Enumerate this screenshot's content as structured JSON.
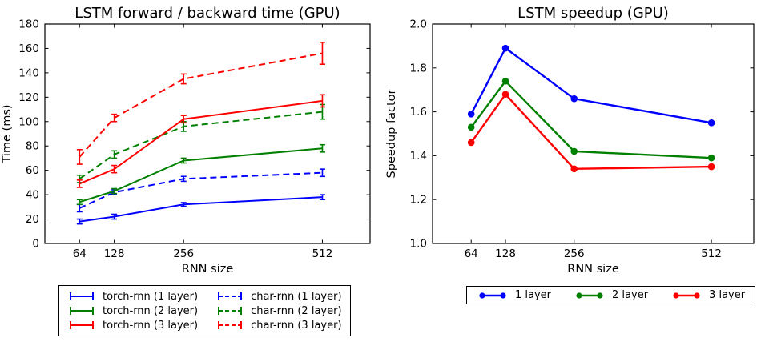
{
  "chart_data": [
    {
      "type": "line",
      "title": "LSTM forward / backward time (GPU)",
      "xlabel": "RNN size",
      "ylabel": "Time (ms)",
      "x": [
        64,
        128,
        256,
        512
      ],
      "xticks": [
        64,
        128,
        256,
        512
      ],
      "xtick_labels": [
        "64",
        "128",
        "256",
        "512"
      ],
      "xlim": [
        0,
        600
      ],
      "ylim": [
        0,
        180
      ],
      "yticks": [
        0,
        20,
        40,
        60,
        80,
        100,
        120,
        140,
        160,
        180
      ],
      "ytick_labels": [
        "0",
        "20",
        "40",
        "60",
        "80",
        "100",
        "120",
        "140",
        "160",
        "180"
      ],
      "grid": false,
      "marker": "none",
      "line_width": 2,
      "legend_position": "below-two-columns",
      "series": [
        {
          "label": "torch-rnn (1 layer)",
          "color": "#0000ff",
          "dash": "solid",
          "values": [
            18,
            22,
            32,
            38
          ],
          "yerr": [
            2,
            2,
            1.5,
            2
          ]
        },
        {
          "label": "char-rnn (1 layer)",
          "color": "#0000ff",
          "dash": "dashed",
          "values": [
            29,
            42,
            53,
            58
          ],
          "yerr": [
            3,
            2,
            2,
            3
          ]
        },
        {
          "label": "torch-rnn (2 layer)",
          "color": "#008000",
          "dash": "solid",
          "values": [
            34,
            43,
            68,
            78
          ],
          "yerr": [
            2,
            2,
            2,
            3
          ]
        },
        {
          "label": "char-rnn (2 layer)",
          "color": "#008000",
          "dash": "dashed",
          "values": [
            53,
            73,
            96,
            108
          ],
          "yerr": [
            3,
            3,
            4,
            6
          ]
        },
        {
          "label": "torch-rnn (3 layer)",
          "color": "#ff0000",
          "dash": "solid",
          "values": [
            49,
            61,
            102,
            117
          ],
          "yerr": [
            3,
            3,
            3,
            5
          ]
        },
        {
          "label": "char-rnn (3 layer)",
          "color": "#ff0000",
          "dash": "dashed",
          "values": [
            71,
            103,
            135,
            156
          ],
          "yerr": [
            6,
            3,
            4,
            9
          ]
        }
      ]
    },
    {
      "type": "line",
      "title": "LSTM speedup (GPU)",
      "xlabel": "RNN size",
      "ylabel": "Speedup factor",
      "x": [
        64,
        128,
        256,
        512
      ],
      "xticks": [
        64,
        128,
        256,
        512
      ],
      "xtick_labels": [
        "64",
        "128",
        "256",
        "512"
      ],
      "xlim": [
        -8,
        591
      ],
      "ylim": [
        1.0,
        2.0
      ],
      "yticks": [
        1.0,
        1.2,
        1.4,
        1.6,
        1.8,
        2.0
      ],
      "ytick_labels": [
        "1.0",
        "1.2",
        "1.4",
        "1.6",
        "1.8",
        "2.0"
      ],
      "grid": false,
      "marker": "circle",
      "line_width": 2.4,
      "legend_position": "below-horizontal",
      "series": [
        {
          "label": "1 layer",
          "color": "#0000ff",
          "dash": "solid",
          "values": [
            1.59,
            1.89,
            1.66,
            1.55
          ]
        },
        {
          "label": "2 layer",
          "color": "#008000",
          "dash": "solid",
          "values": [
            1.53,
            1.74,
            1.42,
            1.39
          ]
        },
        {
          "label": "3 layer",
          "color": "#ff0000",
          "dash": "solid",
          "values": [
            1.46,
            1.68,
            1.34,
            1.35
          ]
        }
      ]
    }
  ]
}
